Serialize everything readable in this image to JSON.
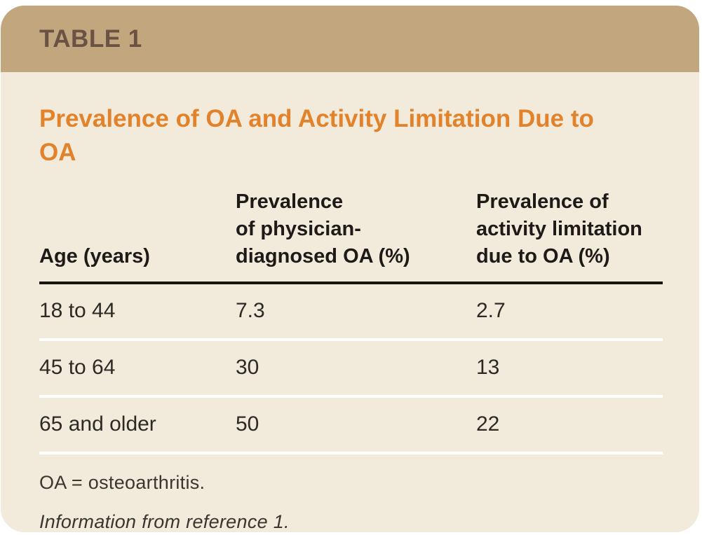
{
  "card": {
    "table_label": "TABLE 1",
    "title": "Prevalence of OA and Activity Limitation Due to OA"
  },
  "table": {
    "columns": [
      "Age (years)",
      "Prevalence\nof physician-\ndiagnosed OA (%)",
      "Prevalence of\nactivity limitation\ndue to OA (%)"
    ],
    "rows": [
      {
        "age": "18 to 44",
        "physician_diagnosed_oa_pct": "7.3",
        "activity_limitation_pct": "2.7"
      },
      {
        "age": "45 to 64",
        "physician_diagnosed_oa_pct": "30",
        "activity_limitation_pct": "13"
      },
      {
        "age": "65 and older",
        "physician_diagnosed_oa_pct": "50",
        "activity_limitation_pct": "22"
      }
    ]
  },
  "footnotes": {
    "abbreviation": "OA = osteoarthritis.",
    "source": "Information from reference 1."
  },
  "colors": {
    "header_band": "#c2a67e",
    "card_background": "#f2ebdb",
    "title_orange": "#e2832c",
    "table_label_brown": "#6a5345",
    "text_dark": "#2d2a26",
    "header_rule_black": "#181511",
    "row_rule_white": "#ffffff",
    "page_background": "#ffffff"
  }
}
